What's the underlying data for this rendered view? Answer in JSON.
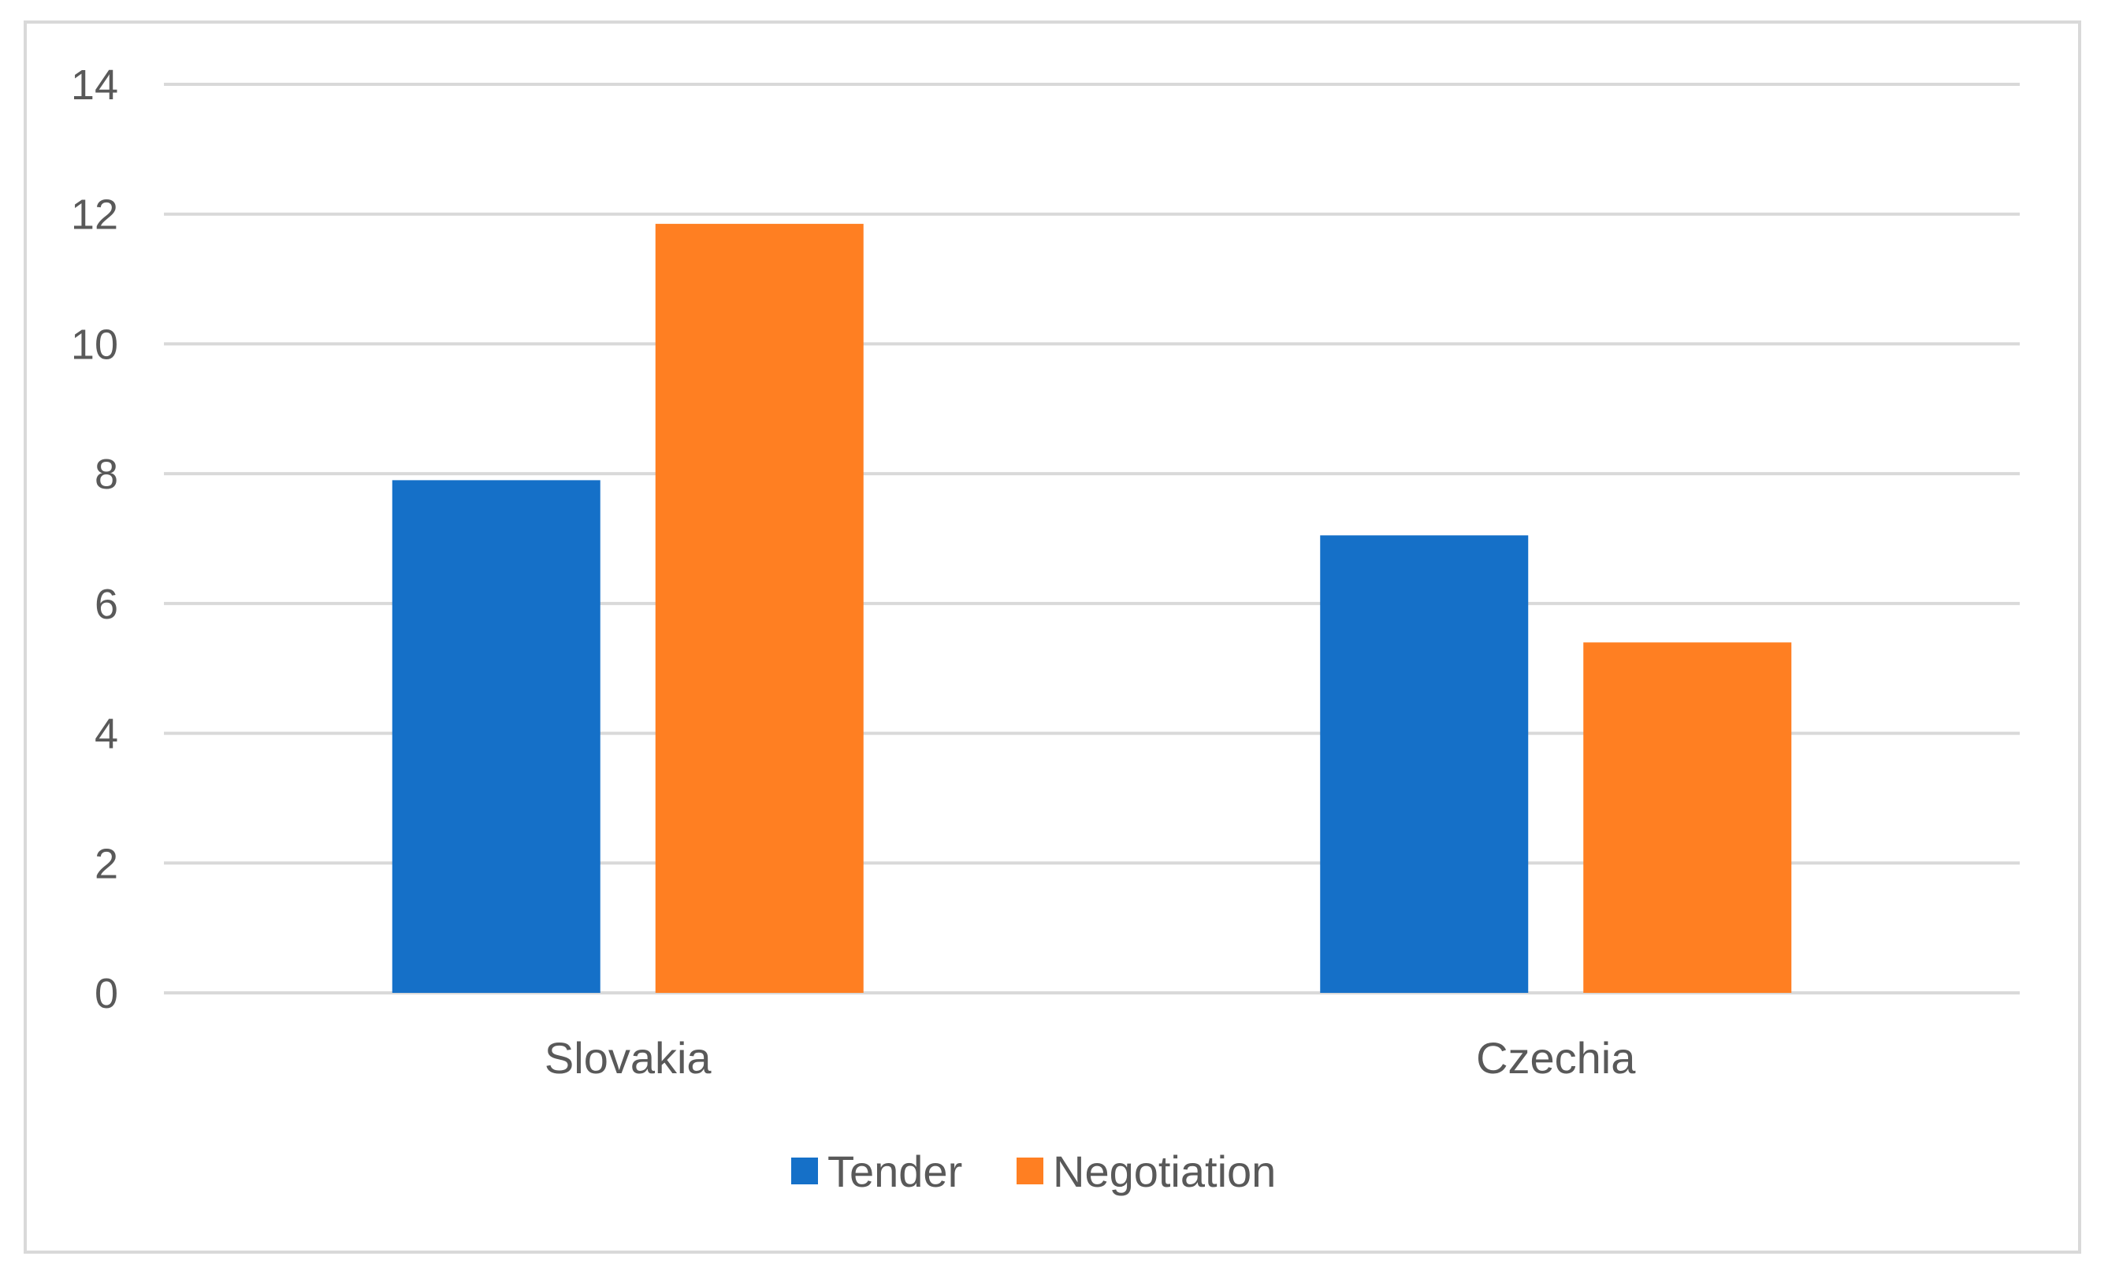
{
  "chart_data": {
    "type": "bar",
    "categories": [
      "Slovakia",
      "Czechia"
    ],
    "series": [
      {
        "name": "Tender",
        "values": [
          7.9,
          7.05
        ],
        "color": "#1570C8"
      },
      {
        "name": "Negotiation",
        "values": [
          11.85,
          5.4
        ],
        "color": "#FF7F22"
      }
    ],
    "ylim": [
      0,
      14
    ],
    "yticks": [
      0,
      2,
      4,
      6,
      8,
      10,
      12,
      14
    ],
    "grid": true,
    "legend_position": "bottom",
    "title": "",
    "xlabel": "",
    "ylabel": ""
  },
  "colors": {
    "grid": "#d9d9d9",
    "text": "#595959",
    "border": "#d9d9d9"
  }
}
